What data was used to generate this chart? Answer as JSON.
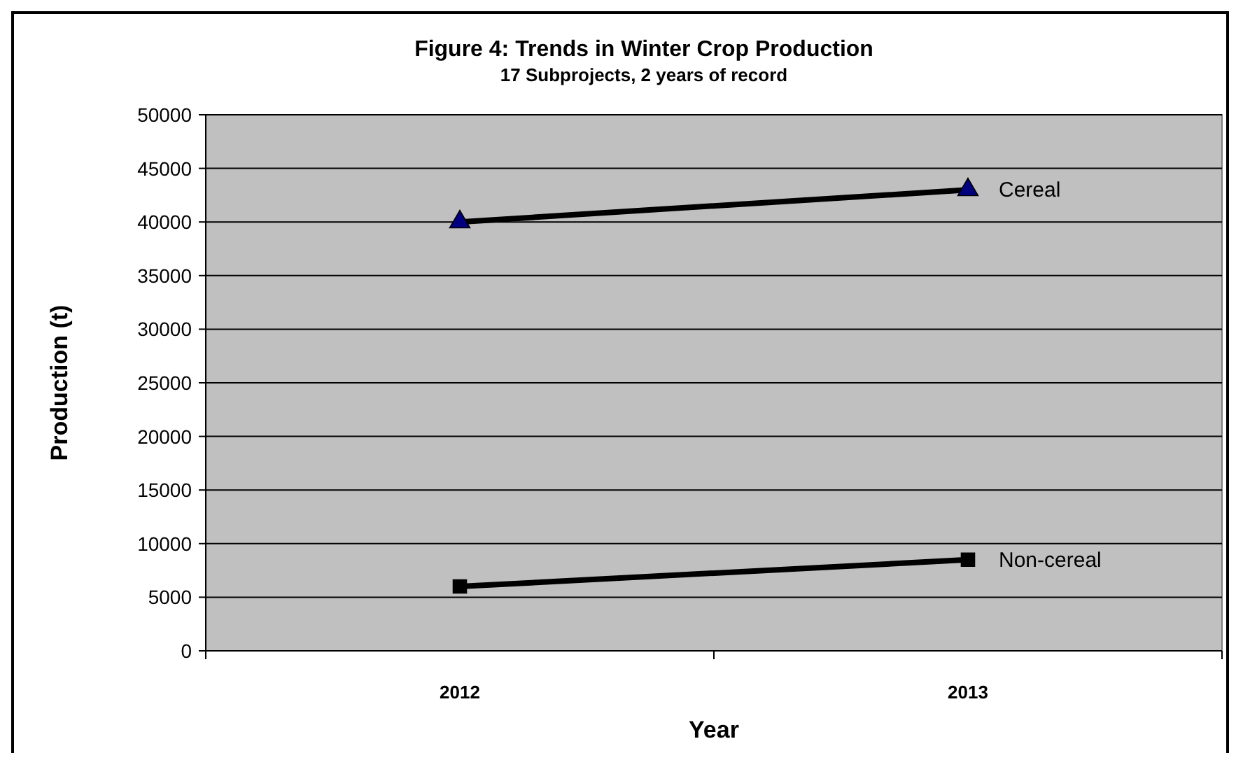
{
  "chart_data": {
    "type": "line",
    "title": "Figure 4: Trends in Winter Crop Production",
    "subtitle": "17 Subprojects, 2 years of record",
    "xlabel": "Year",
    "ylabel": "Production (t)",
    "categories": [
      "2012",
      "2013"
    ],
    "series": [
      {
        "name": "Cereal",
        "color": "#000080",
        "marker": "triangle",
        "values": [
          40000,
          43000
        ]
      },
      {
        "name": "Non-cereal",
        "color": "#000000",
        "marker": "square",
        "values": [
          6000,
          8500
        ]
      }
    ],
    "ylim": [
      0,
      50000
    ],
    "yticks": [
      0,
      5000,
      10000,
      15000,
      20000,
      25000,
      30000,
      35000,
      40000,
      45000,
      50000
    ],
    "grid": "y"
  }
}
